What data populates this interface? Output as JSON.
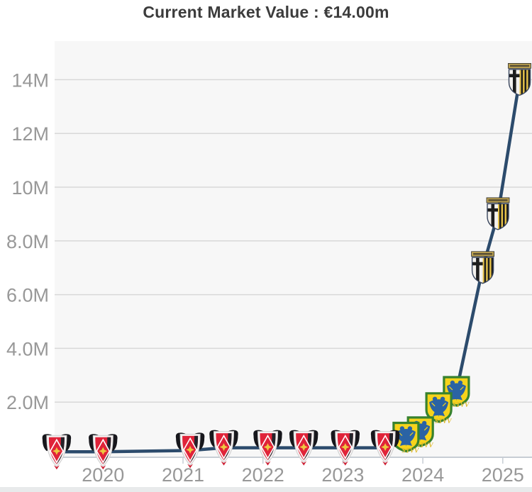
{
  "title": "Current Market Value : €14.00m",
  "colors": {
    "plot_background": "#f7f7f7",
    "gridline": "#d8d8d8",
    "axis_line": "#c7cdd4",
    "axis_label": "#989898",
    "line": "#2c4b6c",
    "title_text": "#3c3c3c"
  },
  "icons": {
    "urawa-crest-icon": "red shield with black wings, red diamond and yellow flower (Urawa Red Diamonds)",
    "stvv-crest-icon": "yellow shield, green border, blue double-headed eagle (Sint-Truiden STVV)",
    "parma-crest-icon": "shield with black cross on white and yellow-black stripes, name banner on top (Parma)"
  },
  "chart_data": {
    "type": "line",
    "title": "Current Market Value : €14.00m",
    "xlabel": "",
    "ylabel": "",
    "x_ticks": [
      {
        "label": "2020",
        "year": 2020
      },
      {
        "label": "2021",
        "year": 2021
      },
      {
        "label": "2022",
        "year": 2022
      },
      {
        "label": "2023",
        "year": 2023
      },
      {
        "label": "2024",
        "year": 2024
      },
      {
        "label": "2025",
        "year": 2025
      }
    ],
    "y_ticks": [
      {
        "label": "2.0M",
        "value_m": 2
      },
      {
        "label": "4.0M",
        "value_m": 4
      },
      {
        "label": "6.0M",
        "value_m": 6
      },
      {
        "label": "8.0M",
        "value_m": 8
      },
      {
        "label": "10M",
        "value_m": 10
      },
      {
        "label": "12M",
        "value_m": 12
      },
      {
        "label": "14M",
        "value_m": 14
      }
    ],
    "ylim_m": [
      0,
      15.4
    ],
    "grid": true,
    "legend_position": "none",
    "line_color": "#2c4b6c",
    "clubs": {
      "urawa": {
        "name": "Urawa Red Diamonds",
        "label": ""
      },
      "stvv": {
        "name": "Sint-Truidense VV",
        "label": "STVV"
      },
      "parma": {
        "name": "Parma Calcio 1913",
        "label": ""
      }
    },
    "series": [
      {
        "name": "Market value (€, millions)",
        "points": [
          {
            "date": "Jun 2019",
            "year_frac": 2019.42,
            "value_m": 0.15,
            "club_id": "urawa"
          },
          {
            "date": "Jan 2020",
            "year_frac": 2020.0,
            "value_m": 0.15,
            "club_id": "urawa"
          },
          {
            "date": "Feb 2021",
            "year_frac": 2021.09,
            "value_m": 0.2,
            "club_id": "urawa"
          },
          {
            "date": "Jul 2021",
            "year_frac": 2021.51,
            "value_m": 0.3,
            "club_id": "urawa"
          },
          {
            "date": "Jan 2022",
            "year_frac": 2022.06,
            "value_m": 0.3,
            "club_id": "urawa"
          },
          {
            "date": "Jul 2022",
            "year_frac": 2022.51,
            "value_m": 0.3,
            "club_id": "urawa"
          },
          {
            "date": "Jan 2023",
            "year_frac": 2023.03,
            "value_m": 0.3,
            "club_id": "urawa"
          },
          {
            "date": "Jul 2023",
            "year_frac": 2023.53,
            "value_m": 0.3,
            "club_id": "urawa"
          },
          {
            "date": "Oct 2023",
            "year_frac": 2023.79,
            "value_m": 0.7,
            "club_id": "stvv"
          },
          {
            "date": "Dec 2023",
            "year_frac": 2023.97,
            "value_m": 0.9,
            "club_id": "stvv"
          },
          {
            "date": "Mar 2024",
            "year_frac": 2024.2,
            "value_m": 1.8,
            "club_id": "stvv"
          },
          {
            "date": "Jun 2024",
            "year_frac": 2024.42,
            "value_m": 2.4,
            "club_id": "stvv"
          },
          {
            "date": "Oct 2024",
            "year_frac": 2024.75,
            "value_m": 7.0,
            "club_id": "parma"
          },
          {
            "date": "Dec 2024",
            "year_frac": 2024.94,
            "value_m": 9.0,
            "club_id": "parma"
          },
          {
            "date": "Mar 2025",
            "year_frac": 2025.21,
            "value_m": 14.0,
            "club_id": "parma"
          }
        ]
      }
    ]
  }
}
